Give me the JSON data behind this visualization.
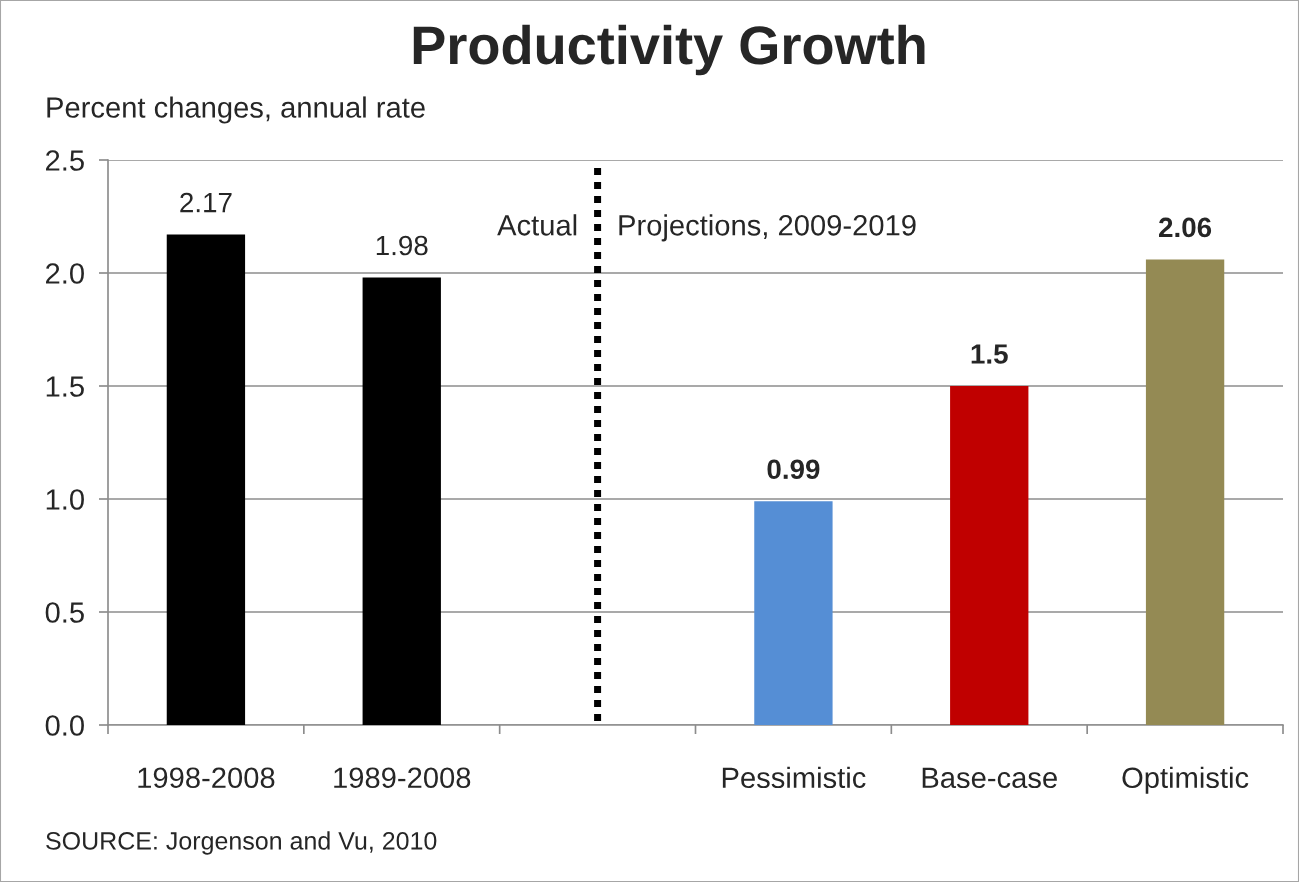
{
  "chart_data": {
    "type": "bar",
    "title": "Productivity Growth",
    "ylabel": "Percent changes, annual rate",
    "categories": [
      "1998-2008",
      "1989-2008",
      null,
      "Pessimistic",
      "Base-case",
      "Optimistic"
    ],
    "series": [
      {
        "color": "#000000",
        "values": [
          2.17,
          1.98,
          null,
          null,
          null,
          null
        ]
      },
      {
        "colors": [
          null,
          null,
          null,
          "#558ed5",
          "#c00000",
          "#948a54"
        ],
        "values": [
          null,
          null,
          null,
          0.99,
          1.5,
          2.06
        ]
      }
    ],
    "ylim": [
      0,
      2.5
    ],
    "yticks": [
      {
        "value": 0,
        "label": "0.0"
      },
      {
        "value": 0.5,
        "label": "0.5"
      },
      {
        "value": 1,
        "label": "1.0"
      },
      {
        "value": 1.5,
        "label": "1.5"
      },
      {
        "value": 2,
        "label": "2.0"
      },
      {
        "value": 2.5,
        "label": "2.5"
      }
    ],
    "grid": "y",
    "legend": false,
    "data_labels": true,
    "annotations": [
      "Actual",
      "Projections, 2009-2019",
      "SOURCE: Jorgenson and Vu, 2010"
    ]
  }
}
